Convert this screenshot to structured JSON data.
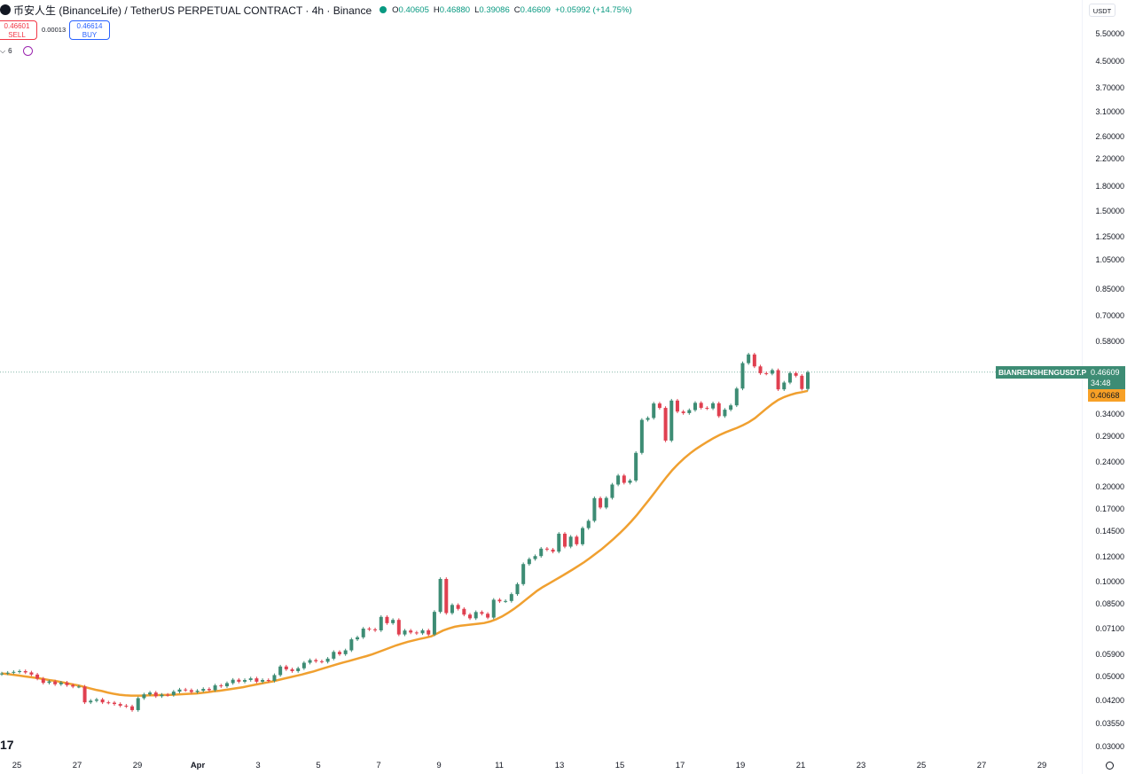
{
  "header": {
    "symbol": "币安人生 (BinanceLife) / TetherUS PERPETUAL CONTRACT · 4h · Binance",
    "o_label": "O",
    "o_value": "0.40605",
    "h_label": "H",
    "h_value": "0.46880",
    "l_label": "L",
    "l_value": "0.39086",
    "c_label": "C",
    "c_value": "0.46609",
    "change": "+0.05992 (+14.75%)"
  },
  "trade": {
    "sell_price": "0.46601",
    "sell_label": "SELL",
    "spread": "0.00013",
    "buy_price": "0.46614",
    "buy_label": "BUY"
  },
  "indicators": {
    "count_label": "6"
  },
  "currency": "USDT",
  "tags": {
    "symbol": "BIANRENSHENGUSDT.P",
    "price": "0.46609",
    "countdown": "34:48",
    "ma_value": "0.40668"
  },
  "colors": {
    "up": "#3d8c74",
    "down": "#e04050",
    "ma": "#f0a030"
  },
  "chart_data": {
    "type": "candlestick",
    "interval": "4h",
    "y_scale": "log",
    "yaxis_ticks": [
      "5.50000",
      "4.50000",
      "3.70000",
      "3.10000",
      "2.60000",
      "2.20000",
      "1.80000",
      "1.50000",
      "1.25000",
      "1.05000",
      "0.85000",
      "0.70000",
      "0.58000",
      "0.34000",
      "0.29000",
      "0.24000",
      "0.20000",
      "0.17000",
      "0.14500",
      "0.12000",
      "0.10000",
      "0.08500",
      "0.07100",
      "0.05900",
      "0.05000",
      "0.04200",
      "0.03550",
      "0.03000"
    ],
    "xaxis_ticks": [
      "25",
      "27",
      "29",
      "Apr",
      "3",
      "5",
      "7",
      "9",
      "11",
      "13",
      "15",
      "17",
      "19",
      "21",
      "23",
      "25",
      "27",
      "29"
    ],
    "last_price": 0.46609,
    "ma_last": 0.40668,
    "candles_close": [
      0.0515,
      0.0518,
      0.0521,
      0.0524,
      0.0519,
      0.0511,
      0.0496,
      0.0481,
      0.0486,
      0.0476,
      0.0482,
      0.0473,
      0.0468,
      0.0468,
      0.0417,
      0.0422,
      0.0426,
      0.0417,
      0.0416,
      0.0412,
      0.0407,
      0.0405,
      0.0394,
      0.043,
      0.0442,
      0.0448,
      0.0436,
      0.0441,
      0.044,
      0.0451,
      0.0458,
      0.0456,
      0.045,
      0.0454,
      0.046,
      0.0456,
      0.0472,
      0.0469,
      0.048,
      0.0492,
      0.0485,
      0.0491,
      0.0497,
      0.0485,
      0.0491,
      0.0488,
      0.0509,
      0.0542,
      0.0531,
      0.0524,
      0.0535,
      0.0557,
      0.0568,
      0.0563,
      0.0561,
      0.0574,
      0.0603,
      0.0593,
      0.061,
      0.0661,
      0.0671,
      0.0715,
      0.0711,
      0.0706,
      0.0779,
      0.0744,
      0.0762,
      0.0685,
      0.0705,
      0.0695,
      0.0691,
      0.0706,
      0.0685,
      0.0808,
      0.1028,
      0.0801,
      0.085,
      0.0826,
      0.0792,
      0.0771,
      0.0807,
      0.0797,
      0.0775,
      0.0883,
      0.0873,
      0.0875,
      0.092,
      0.099,
      0.1146,
      0.1189,
      0.1215,
      0.1283,
      0.1274,
      0.1255,
      0.1431,
      0.1302,
      0.14,
      0.1325,
      0.1491,
      0.1572,
      0.1856,
      0.1733,
      0.1859,
      0.205,
      0.2189,
      0.2076,
      0.2111,
      0.2584,
      0.3289,
      0.3335,
      0.3707,
      0.359,
      0.2827,
      0.3788,
      0.3495,
      0.3456,
      0.3533,
      0.3725,
      0.3591,
      0.3576,
      0.3713,
      0.3379,
      0.3543,
      0.3657,
      0.4135,
      0.498,
      0.5306,
      0.4862,
      0.4627,
      0.4611,
      0.4731,
      0.4111,
      0.432,
      0.463,
      0.4541,
      0.4123,
      0.4661
    ],
    "ma_close": [
      0.0515,
      0.0513,
      0.051,
      0.0507,
      0.0504,
      0.0501,
      0.0498,
      0.0495,
      0.0491,
      0.0488,
      0.0484,
      0.048,
      0.0476,
      0.0472,
      0.0467,
      0.0462,
      0.0457,
      0.0453,
      0.0448,
      0.0444,
      0.0441,
      0.0439,
      0.0438,
      0.0438,
      0.0438,
      0.0439,
      0.0439,
      0.044,
      0.044,
      0.0441,
      0.0442,
      0.0443,
      0.0444,
      0.0445,
      0.0447,
      0.0449,
      0.0452,
      0.0454,
      0.0457,
      0.046,
      0.0463,
      0.0466,
      0.047,
      0.0474,
      0.0478,
      0.0482,
      0.0486,
      0.0491,
      0.0496,
      0.0501,
      0.0506,
      0.0511,
      0.0517,
      0.0523,
      0.053,
      0.0537,
      0.0544,
      0.0551,
      0.0558,
      0.0564,
      0.0571,
      0.0578,
      0.0585,
      0.0593,
      0.0602,
      0.0612,
      0.0622,
      0.0632,
      0.0641,
      0.0649,
      0.0656,
      0.0663,
      0.0669,
      0.0676,
      0.069,
      0.0705,
      0.0716,
      0.0725,
      0.073,
      0.0734,
      0.0737,
      0.0741,
      0.0745,
      0.0753,
      0.0765,
      0.0781,
      0.0801,
      0.0824,
      0.0851,
      0.0881,
      0.0912,
      0.0943,
      0.097,
      0.0994,
      0.1019,
      0.1045,
      0.1072,
      0.11,
      0.1131,
      0.1163,
      0.1199,
      0.1238,
      0.128,
      0.1327,
      0.1378,
      0.1434,
      0.1496,
      0.1566,
      0.1646,
      0.1737,
      0.1833,
      0.1938,
      0.205,
      0.2168,
      0.2281,
      0.2386,
      0.2485,
      0.2576,
      0.2658,
      0.2734,
      0.2808,
      0.288,
      0.2945,
      0.3002,
      0.3052,
      0.3104,
      0.3164,
      0.3235,
      0.333,
      0.3449,
      0.3577,
      0.37,
      0.3808,
      0.3886,
      0.3948,
      0.3996,
      0.4027,
      0.4067
    ]
  }
}
